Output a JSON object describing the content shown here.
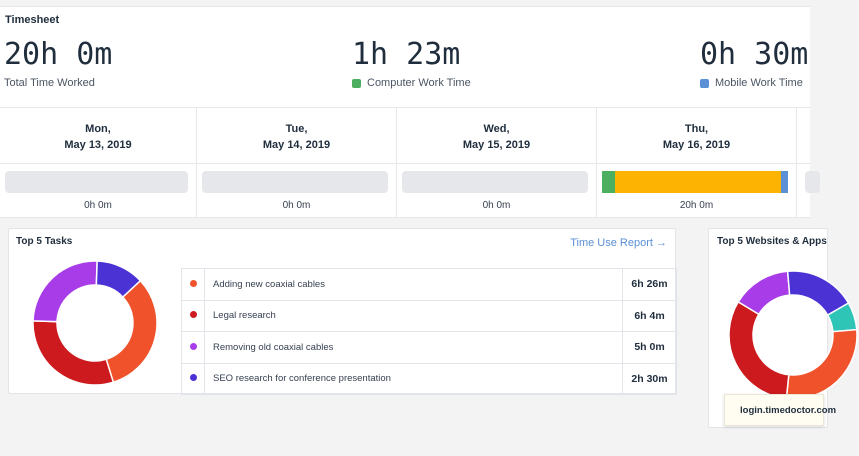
{
  "header": {
    "title": "Timesheet",
    "total": {
      "value": "20h 0m",
      "label": "Total Time Worked"
    },
    "computer": {
      "value": "1h 23m",
      "label": "Computer Work Time",
      "color": "#4caf60"
    },
    "mobile": {
      "value": "0h 30m",
      "label": "Mobile Work Time",
      "color": "#5b8fd6"
    }
  },
  "days": [
    {
      "weekday": "Mon,",
      "date": "May 13, 2019",
      "time": "0h 0m",
      "segments": []
    },
    {
      "weekday": "Tue,",
      "date": "May 14, 2019",
      "time": "0h 0m",
      "segments": []
    },
    {
      "weekday": "Wed,",
      "date": "May 15, 2019",
      "time": "0h 0m",
      "segments": []
    },
    {
      "weekday": "Thu,",
      "date": "May 16, 2019",
      "time": "20h 0m",
      "segments": [
        {
          "color": "#4caf60",
          "fraction": 0.07
        },
        {
          "color": "#fdb302",
          "fraction": 0.89
        },
        {
          "color": "#5b8fd6",
          "fraction": 0.04
        }
      ]
    }
  ],
  "tasks": {
    "title": "Top 5 Tasks",
    "link": "Time Use Report →",
    "items": [
      {
        "name": "Adding new coaxial cables",
        "duration": "6h 26m",
        "color": "#f0532b",
        "minutes": 386
      },
      {
        "name": "Legal research",
        "duration": "6h 4m",
        "color": "#cc1a1f",
        "minutes": 364
      },
      {
        "name": "Removing old coaxial cables",
        "duration": "5h 0m",
        "color": "#a73ce8",
        "minutes": 300
      },
      {
        "name": "SEO research for conference presentation",
        "duration": "2h 30m",
        "color": "#4a32d4",
        "minutes": 150
      }
    ]
  },
  "websites": {
    "title": "Top 5 Websites & Apps",
    "tooltip": "login.timedoctor.com",
    "slices": [
      {
        "color": "#2ec4b6",
        "fraction": 0.07
      },
      {
        "color": "#f0532b",
        "fraction": 0.28
      },
      {
        "color": "#cc1a1f",
        "fraction": 0.32
      },
      {
        "color": "#a73ce8",
        "fraction": 0.15
      },
      {
        "color": "#4a32d4",
        "fraction": 0.18
      }
    ]
  }
}
